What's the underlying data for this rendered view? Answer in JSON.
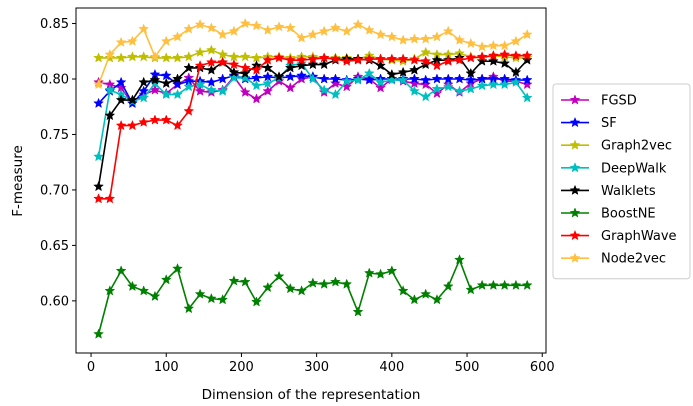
{
  "chart_data": {
    "type": "line",
    "xlabel": "Dimension of the representation",
    "ylabel": "F-measure",
    "xlim": [
      -20,
      605
    ],
    "ylim": [
      0.553,
      0.864
    ],
    "xticks": [
      0,
      100,
      200,
      300,
      400,
      500,
      600
    ],
    "xtick_labels": [
      "0",
      "100",
      "200",
      "300",
      "400",
      "500",
      "600"
    ],
    "yticks": [
      0.6,
      0.65,
      0.7,
      0.75,
      0.8,
      0.85
    ],
    "ytick_labels": [
      "0.60",
      "0.65",
      "0.70",
      "0.75",
      "0.80",
      "0.85"
    ],
    "grid": false,
    "legend_position": "center-right-outside",
    "x": [
      10,
      25,
      40,
      55,
      70,
      85,
      100,
      115,
      130,
      145,
      160,
      175,
      190,
      205,
      220,
      235,
      250,
      265,
      280,
      295,
      310,
      325,
      340,
      355,
      370,
      385,
      400,
      415,
      430,
      445,
      460,
      475,
      490,
      505,
      520,
      535,
      550,
      565,
      580
    ],
    "series": [
      {
        "name": "FGSD",
        "color": "#bf00bf",
        "values": [
          0.797,
          0.795,
          0.792,
          0.778,
          0.786,
          0.79,
          0.787,
          0.795,
          0.801,
          0.789,
          0.788,
          0.79,
          0.802,
          0.788,
          0.782,
          0.789,
          0.798,
          0.792,
          0.8,
          0.802,
          0.788,
          0.796,
          0.793,
          0.802,
          0.8,
          0.792,
          0.8,
          0.798,
          0.796,
          0.795,
          0.787,
          0.795,
          0.788,
          0.796,
          0.8,
          0.802,
          0.798,
          0.798,
          0.795
        ]
      },
      {
        "name": "SF",
        "color": "#0000ff",
        "values": [
          0.778,
          0.789,
          0.797,
          0.778,
          0.789,
          0.804,
          0.803,
          0.795,
          0.798,
          0.798,
          0.797,
          0.8,
          0.803,
          0.8,
          0.801,
          0.802,
          0.801,
          0.802,
          0.803,
          0.802,
          0.8,
          0.8,
          0.799,
          0.8,
          0.799,
          0.8,
          0.8,
          0.8,
          0.8,
          0.799,
          0.8,
          0.8,
          0.8,
          0.799,
          0.8,
          0.8,
          0.8,
          0.799,
          0.799
        ]
      },
      {
        "name": "Graph2vec",
        "color": "#bfbf00",
        "values": [
          0.819,
          0.819,
          0.819,
          0.82,
          0.82,
          0.819,
          0.819,
          0.819,
          0.82,
          0.824,
          0.826,
          0.822,
          0.82,
          0.82,
          0.819,
          0.82,
          0.82,
          0.819,
          0.82,
          0.82,
          0.819,
          0.819,
          0.819,
          0.818,
          0.821,
          0.818,
          0.817,
          0.816,
          0.818,
          0.824,
          0.822,
          0.822,
          0.823,
          0.82,
          0.819,
          0.821,
          0.82,
          0.819,
          0.819
        ]
      },
      {
        "name": "DeepWalk",
        "color": "#00bfbf",
        "values": [
          0.73,
          0.79,
          0.786,
          0.78,
          0.783,
          0.796,
          0.786,
          0.786,
          0.793,
          0.795,
          0.79,
          0.789,
          0.801,
          0.801,
          0.794,
          0.796,
          0.801,
          0.812,
          0.814,
          0.8,
          0.79,
          0.786,
          0.798,
          0.799,
          0.805,
          0.797,
          0.799,
          0.799,
          0.789,
          0.784,
          0.791,
          0.793,
          0.789,
          0.791,
          0.794,
          0.795,
          0.795,
          0.797,
          0.783
        ]
      },
      {
        "name": "Walklets",
        "color": "#000000",
        "values": [
          0.703,
          0.767,
          0.781,
          0.781,
          0.797,
          0.799,
          0.796,
          0.8,
          0.81,
          0.81,
          0.808,
          0.815,
          0.806,
          0.805,
          0.812,
          0.81,
          0.802,
          0.81,
          0.812,
          0.813,
          0.813,
          0.817,
          0.818,
          0.818,
          0.817,
          0.812,
          0.804,
          0.806,
          0.808,
          0.813,
          0.817,
          0.817,
          0.819,
          0.805,
          0.816,
          0.816,
          0.814,
          0.806,
          0.817
        ]
      },
      {
        "name": "BoostNE",
        "color": "#008000",
        "values": [
          0.57,
          0.609,
          0.627,
          0.613,
          0.609,
          0.604,
          0.619,
          0.629,
          0.593,
          0.606,
          0.602,
          0.601,
          0.618,
          0.617,
          0.599,
          0.612,
          0.622,
          0.611,
          0.609,
          0.616,
          0.615,
          0.617,
          0.615,
          0.59,
          0.625,
          0.624,
          0.627,
          0.609,
          0.601,
          0.606,
          0.601,
          0.613,
          0.637,
          0.61,
          0.614,
          0.614,
          0.614,
          0.614,
          0.614
        ]
      },
      {
        "name": "GraphWave",
        "color": "#ff0000",
        "values": [
          0.692,
          0.692,
          0.758,
          0.758,
          0.761,
          0.763,
          0.763,
          0.758,
          0.771,
          0.812,
          0.815,
          0.815,
          0.813,
          0.81,
          0.808,
          0.817,
          0.819,
          0.817,
          0.817,
          0.818,
          0.819,
          0.818,
          0.816,
          0.817,
          0.818,
          0.818,
          0.818,
          0.818,
          0.817,
          0.816,
          0.812,
          0.816,
          0.817,
          0.819,
          0.82,
          0.821,
          0.822,
          0.821,
          0.821
        ]
      },
      {
        "name": "Node2vec",
        "color": "#ffbf40",
        "values": [
          0.795,
          0.822,
          0.833,
          0.834,
          0.845,
          0.82,
          0.834,
          0.838,
          0.845,
          0.849,
          0.846,
          0.84,
          0.843,
          0.85,
          0.848,
          0.844,
          0.847,
          0.846,
          0.837,
          0.84,
          0.843,
          0.846,
          0.843,
          0.849,
          0.844,
          0.84,
          0.838,
          0.835,
          0.836,
          0.836,
          0.838,
          0.843,
          0.835,
          0.832,
          0.829,
          0.83,
          0.83,
          0.834,
          0.84
        ]
      }
    ]
  }
}
